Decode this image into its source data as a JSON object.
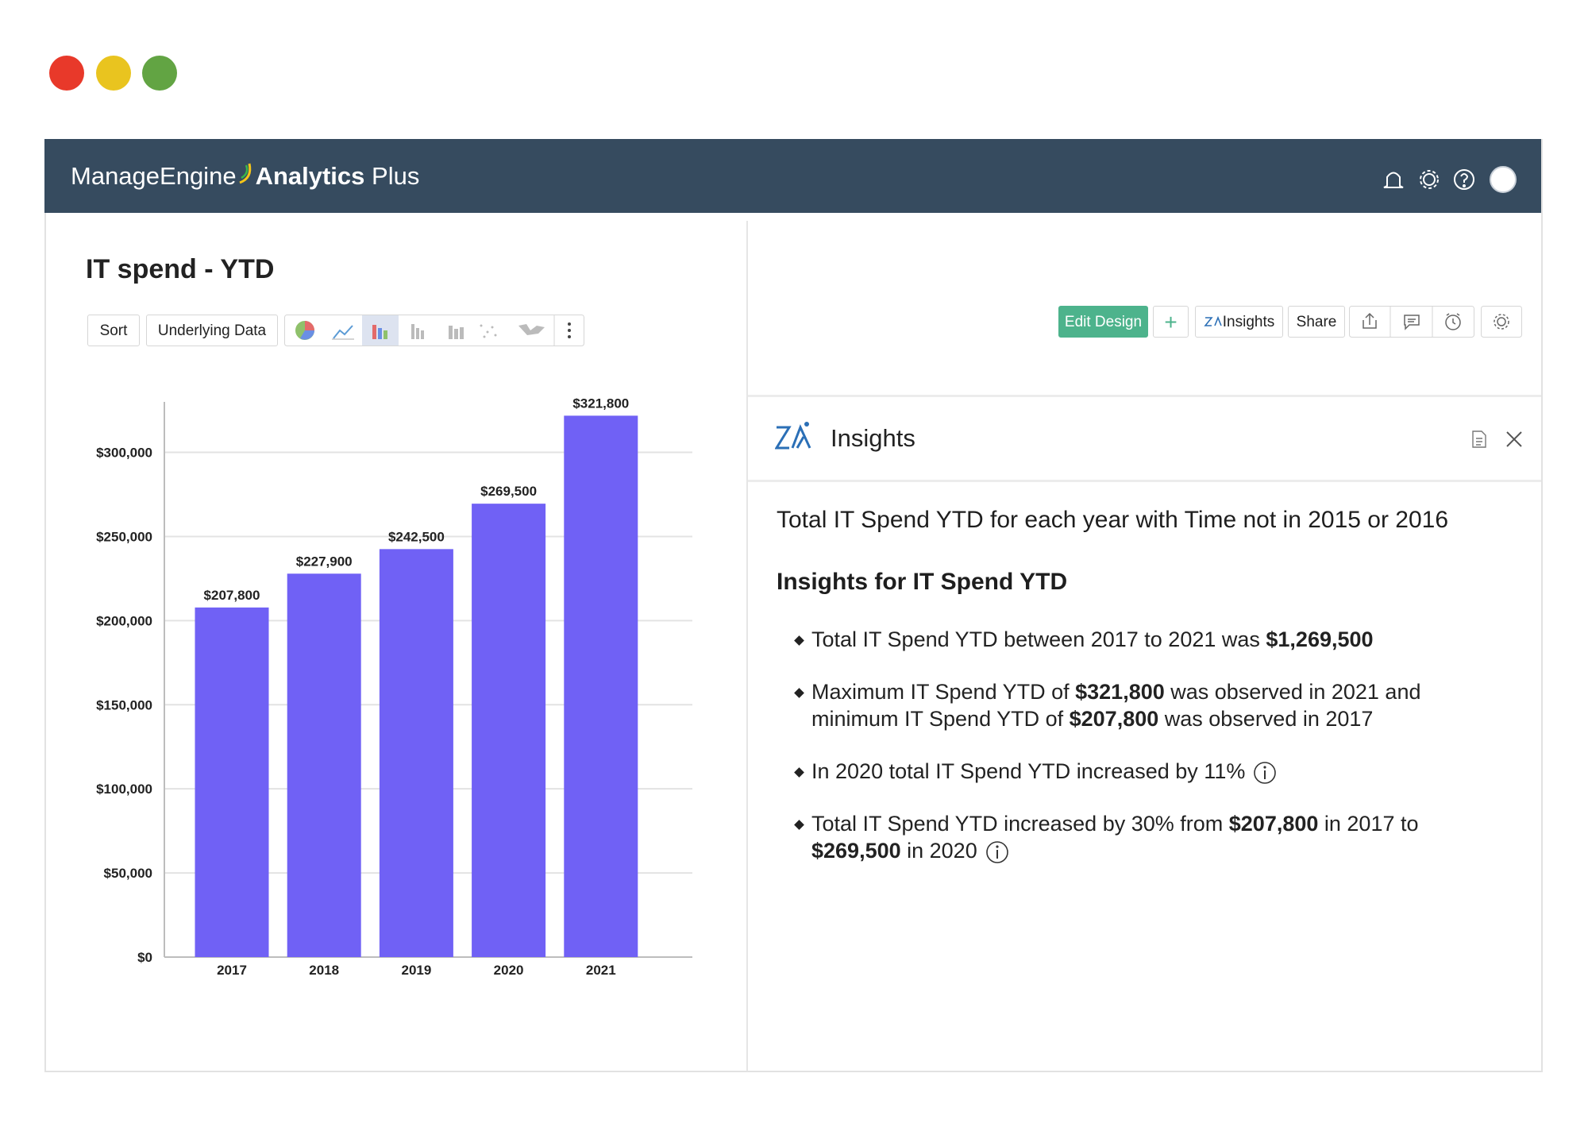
{
  "app": {
    "brand": "ManageEngine",
    "product": "Analytics",
    "edition": "Plus"
  },
  "toolbar": {
    "sort": "Sort",
    "underlying_data": "Underlying Data"
  },
  "actions": {
    "edit_design": "Edit Design",
    "insights": "Insights",
    "share": "Share"
  },
  "chart_data": {
    "type": "bar",
    "title": "IT spend - YTD",
    "categories": [
      "2017",
      "2018",
      "2019",
      "2020",
      "2021"
    ],
    "values": [
      207800,
      227900,
      242500,
      269500,
      321800
    ],
    "value_labels": [
      "$207,800",
      "$227,900",
      "$242,500",
      "$269,500",
      "$321,800"
    ],
    "color": "#7061f5",
    "ylim": [
      0,
      330000
    ],
    "yticks": [
      {
        "value": 0,
        "label": "$0"
      },
      {
        "value": 50000,
        "label": "$50,000"
      },
      {
        "value": 100000,
        "label": "$100,000"
      },
      {
        "value": 150000,
        "label": "$150,000"
      },
      {
        "value": 200000,
        "label": "$200,000"
      },
      {
        "value": 250000,
        "label": "$250,000"
      },
      {
        "value": 300000,
        "label": "$300,000"
      }
    ],
    "grid": true
  },
  "insights": {
    "title": "Insights",
    "heading": "Total IT Spend YTD for each year with Time not in 2015 or 2016",
    "subheading": "Insights for IT Spend YTD",
    "items": [
      {
        "parts": [
          {
            "text": "Total IT Spend YTD between 2017 to 2021 was ",
            "bold": false
          },
          {
            "text": "$1,269,500",
            "bold": true
          }
        ],
        "info": false
      },
      {
        "parts": [
          {
            "text": "Maximum IT Spend YTD of ",
            "bold": false
          },
          {
            "text": "$321,800",
            "bold": true
          },
          {
            "text": " was observed in 2021 and minimum IT Spend YTD of ",
            "bold": false
          },
          {
            "text": "$207,800",
            "bold": true
          },
          {
            "text": " was observed in 2017",
            "bold": false
          }
        ],
        "info": false
      },
      {
        "parts": [
          {
            "text": "In 2020 total IT Spend YTD increased by 11%",
            "bold": false
          }
        ],
        "info": true
      },
      {
        "parts": [
          {
            "text": "Total IT Spend YTD increased by 30% from  ",
            "bold": false
          },
          {
            "text": "$207,800",
            "bold": true
          },
          {
            "text": " in 2017 to ",
            "bold": false
          },
          {
            "text": "$269,500",
            "bold": true
          },
          {
            "text": " in 2020",
            "bold": false
          }
        ],
        "info": true
      }
    ]
  }
}
